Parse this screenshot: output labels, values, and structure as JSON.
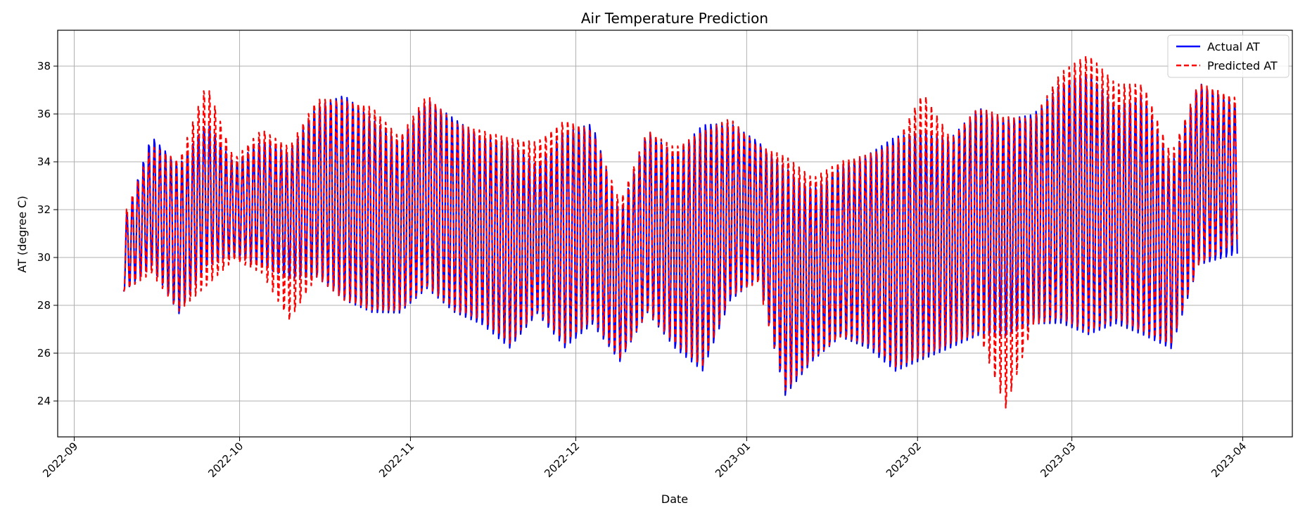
{
  "chart_data": {
    "type": "line",
    "title": "Air Temperature Prediction",
    "xlabel": "Date",
    "ylabel": "AT (degree C)",
    "xlim": [
      "2022-08-29",
      "2023-04-10"
    ],
    "ylim": [
      22.5,
      39.5
    ],
    "x_ticks": [
      "2022-09",
      "2022-10",
      "2022-11",
      "2022-12",
      "2023-01",
      "2023-02",
      "2023-03",
      "2023-04"
    ],
    "y_ticks": [
      24,
      26,
      28,
      30,
      32,
      34,
      36,
      38
    ],
    "grid": true,
    "legend_position": "top-right",
    "x_range": [
      "2022-09-10",
      "2023-03-31"
    ],
    "series": [
      {
        "name": "Actual AT",
        "color": "#0000ff",
        "style": "solid",
        "x": [
          "2022-09-10",
          "2022-09-15",
          "2022-09-20",
          "2022-09-25",
          "2022-09-30",
          "2022-10-05",
          "2022-10-10",
          "2022-10-15",
          "2022-10-20",
          "2022-10-25",
          "2022-10-30",
          "2022-11-04",
          "2022-11-09",
          "2022-11-14",
          "2022-11-19",
          "2022-11-24",
          "2022-11-29",
          "2022-12-04",
          "2022-12-09",
          "2022-12-14",
          "2022-12-19",
          "2022-12-24",
          "2022-12-29",
          "2023-01-03",
          "2023-01-08",
          "2023-01-13",
          "2023-01-18",
          "2023-01-23",
          "2023-01-28",
          "2023-02-02",
          "2023-02-07",
          "2023-02-12",
          "2023-02-17",
          "2023-02-22",
          "2023-02-27",
          "2023-03-04",
          "2023-03-09",
          "2023-03-14",
          "2023-03-19",
          "2023-03-24",
          "2023-03-31"
        ],
        "daily_max": [
          31.5,
          35.2,
          34.0,
          35.8,
          34.0,
          35.0,
          34.5,
          36.5,
          37.0,
          36.0,
          35.0,
          36.8,
          36.0,
          35.2,
          35.0,
          34.0,
          35.5,
          35.8,
          32.0,
          35.5,
          34.5,
          35.8,
          35.8,
          35.0,
          34.0,
          33.0,
          34.0,
          34.5,
          35.3,
          35.5,
          35.2,
          36.5,
          36.0,
          36.2,
          37.5,
          38.0,
          36.5,
          37.0,
          34.0,
          37.5,
          36.5
        ],
        "daily_min": [
          28.5,
          29.5,
          27.5,
          29.5,
          30.0,
          29.5,
          29.0,
          29.0,
          28.0,
          27.5,
          27.5,
          28.5,
          27.5,
          27.0,
          26.0,
          27.5,
          26.0,
          27.0,
          25.5,
          27.5,
          26.0,
          25.0,
          28.0,
          29.0,
          24.0,
          25.5,
          26.5,
          26.0,
          25.0,
          25.5,
          26.0,
          26.5,
          26.5,
          27.0,
          27.0,
          26.5,
          27.0,
          26.5,
          26.0,
          29.5,
          30.0
        ]
      },
      {
        "name": "Predicted AT",
        "color": "#ff0000",
        "style": "dashed",
        "x": [
          "2022-09-10",
          "2022-09-15",
          "2022-09-20",
          "2022-09-25",
          "2022-09-30",
          "2022-10-05",
          "2022-10-10",
          "2022-10-15",
          "2022-10-20",
          "2022-10-25",
          "2022-10-30",
          "2022-11-04",
          "2022-11-09",
          "2022-11-14",
          "2022-11-19",
          "2022-11-24",
          "2022-11-29",
          "2022-12-04",
          "2022-12-09",
          "2022-12-14",
          "2022-12-19",
          "2022-12-24",
          "2022-12-29",
          "2023-01-03",
          "2023-01-08",
          "2023-01-13",
          "2023-01-18",
          "2023-01-23",
          "2023-01-28",
          "2023-02-02",
          "2023-02-07",
          "2023-02-12",
          "2023-02-17",
          "2023-02-22",
          "2023-02-27",
          "2023-03-04",
          "2023-03-09",
          "2023-03-14",
          "2023-03-19",
          "2023-03-24",
          "2023-03-31"
        ],
        "daily_max": [
          31.8,
          34.8,
          34.2,
          37.5,
          34.2,
          35.5,
          34.8,
          36.8,
          36.8,
          36.5,
          35.2,
          37.0,
          35.8,
          35.5,
          35.2,
          35.0,
          36.0,
          35.5,
          32.5,
          35.5,
          34.8,
          35.5,
          36.0,
          34.8,
          34.5,
          33.5,
          34.2,
          34.5,
          35.0,
          37.2,
          35.2,
          36.5,
          36.2,
          36.0,
          38.0,
          38.8,
          37.5,
          37.5,
          34.5,
          37.5,
          36.8
        ],
        "daily_min": [
          28.5,
          29.2,
          27.6,
          28.6,
          29.8,
          29.2,
          27.2,
          29.0,
          28.0,
          27.6,
          27.6,
          28.6,
          27.6,
          27.2,
          26.2,
          27.6,
          26.2,
          27.2,
          25.6,
          27.5,
          26.2,
          25.2,
          28.2,
          28.8,
          24.2,
          25.6,
          26.5,
          26.2,
          25.2,
          25.6,
          26.2,
          26.6,
          23.4,
          27.0,
          27.2,
          26.6,
          27.2,
          26.6,
          26.2,
          29.5,
          30.5
        ]
      }
    ]
  }
}
